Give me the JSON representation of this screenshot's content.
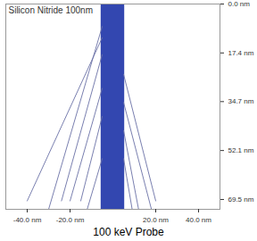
{
  "chart_data": {
    "type": "line",
    "title": "Silicon Nitride 100nm",
    "caption": "100 keV Probe",
    "color": "#6a70a6",
    "beam": {
      "x": [
        -5.5,
        5.5
      ],
      "color": "#3347b0"
    },
    "series": [
      {
        "x": [
          -5,
          -40
        ],
        "values": [
          12,
          70
        ]
      },
      {
        "x": [
          -5,
          -30
        ],
        "values": [
          8,
          73
        ]
      },
      {
        "x": [
          -5,
          -24
        ],
        "values": [
          18,
          70
        ]
      },
      {
        "x": [
          -5,
          -20
        ],
        "values": [
          30,
          70
        ]
      },
      {
        "x": [
          -5,
          -15
        ],
        "values": [
          40,
          70
        ]
      },
      {
        "x": [
          -5,
          -12
        ],
        "values": [
          55,
          73
        ]
      },
      {
        "x": [
          5,
          20
        ],
        "values": [
          25,
          70
        ]
      },
      {
        "x": [
          5,
          18
        ],
        "values": [
          35,
          73
        ]
      },
      {
        "x": [
          5,
          12
        ],
        "values": [
          45,
          73
        ]
      },
      {
        "x": [
          5,
          9
        ],
        "values": [
          55,
          73
        ]
      }
    ],
    "xlim": [
      -50,
      50
    ],
    "ylim": [
      0,
      73
    ],
    "xticks": [
      {
        "value": -40,
        "label": "-40.0 nm"
      },
      {
        "value": -20,
        "label": "-20.0 nm"
      },
      {
        "value": 20,
        "label": "20.0 nm"
      },
      {
        "value": 40,
        "label": "40.0 nm"
      }
    ],
    "yticks": [
      {
        "value": 0,
        "label": "0.0 nm"
      },
      {
        "value": 17.4,
        "label": "17.4 nm"
      },
      {
        "value": 34.7,
        "label": "34.7 nm"
      },
      {
        "value": 52.1,
        "label": "52.1 nm"
      },
      {
        "value": 69.5,
        "label": "69.5 nm"
      }
    ],
    "grid": false
  }
}
